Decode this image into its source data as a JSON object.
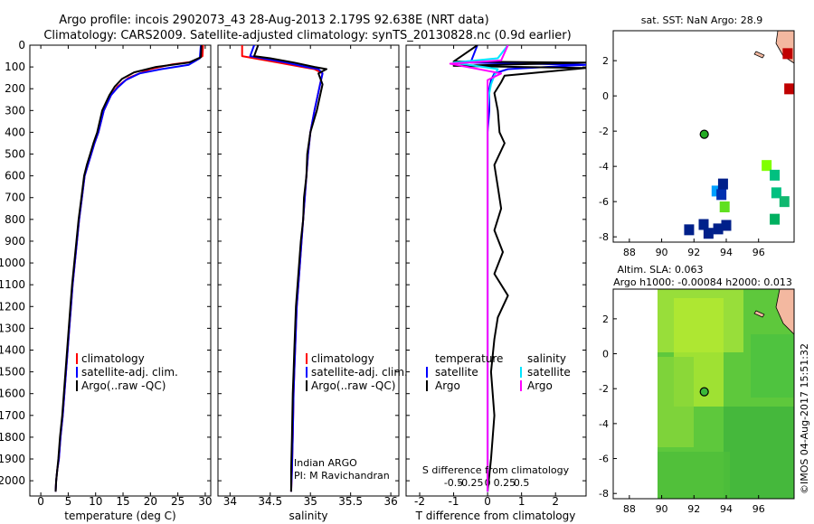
{
  "header": {
    "line1": "Argo profile: incois 2902073_43 28-Aug-2013 2.179S 92.638E (NRT data)",
    "line2": "Climatology: CARS2009. Satellite-adjusted climatology: synTS_20130828.nc (0.9d earlier)"
  },
  "colors": {
    "climatology": "#ff0000",
    "satellite": "#0000ff",
    "argo": "#000000",
    "sat_salinity": "#00e5ff",
    "argo_salinity": "#ff00ff"
  },
  "panels": {
    "temperature": {
      "xlabel": "temperature (deg C)",
      "legend": [
        "climatology",
        "satellite-adj. clim.",
        "Argo(..raw -QC)"
      ]
    },
    "salinity": {
      "xlabel": "salinity",
      "legend": [
        "climatology",
        "satellite-adj. clim.",
        "Argo(..raw -QC)"
      ],
      "credit": [
        "Indian ARGO",
        "PI: M Ravichandran"
      ]
    },
    "difference": {
      "legend_headers": [
        "temperature",
        "salinity"
      ],
      "legend_left": [
        "satellite",
        "Argo"
      ],
      "legend_right": [
        "satellite",
        "Argo"
      ],
      "top_axis_title": "S difference from climatology",
      "xlabel": "T difference from climatology"
    },
    "sst_map": {
      "title": "sat. SST: NaN Argo: 28.9"
    },
    "sla_map": {
      "title1": "Altim. SLA: 0.063",
      "title2": "Argo h1000: -0.00084 h2000: 0.013"
    },
    "footer": "©IMOS 04-Aug-2017 15:51:32"
  },
  "chart_data": [
    {
      "type": "line",
      "title": "",
      "xlabel": "temperature (deg C)",
      "ylabel": "",
      "xlim": [
        -2,
        31
      ],
      "ylim": [
        2070,
        0
      ],
      "xticks": [
        0,
        5,
        10,
        15,
        20,
        25,
        30
      ],
      "yticks": [
        0,
        100,
        200,
        300,
        400,
        500,
        600,
        700,
        800,
        900,
        1000,
        1100,
        1200,
        1300,
        1400,
        1500,
        1600,
        1700,
        1800,
        1900,
        2000
      ],
      "series": [
        {
          "name": "climatology",
          "color": "#ff0000",
          "x": [
            29.6,
            29.5,
            28,
            24,
            20,
            16,
            14,
            12.8,
            11.5,
            10.5,
            9.8,
            9.2,
            8.6,
            8.0,
            7.5,
            7.0,
            6.6,
            6.2,
            5.8,
            5.5,
            5.2,
            4.9,
            4.6,
            4.3,
            4.0,
            3.6,
            3.3,
            3.0,
            2.8,
            2.7
          ],
          "y": [
            0,
            50,
            75,
            88,
            110,
            150,
            190,
            230,
            300,
            400,
            450,
            500,
            550,
            600,
            700,
            800,
            900,
            1000,
            1100,
            1200,
            1300,
            1400,
            1500,
            1600,
            1700,
            1800,
            1900,
            1950,
            2000,
            2050
          ]
        },
        {
          "name": "satellite-adj. clim.",
          "color": "#0000ff",
          "x": [
            29.2,
            29.0,
            27,
            22,
            18,
            15.5,
            14,
            12.8,
            11.5,
            10.5,
            9.8,
            9.2,
            8.6,
            8.0,
            7.5,
            7.0,
            6.6,
            6.2,
            5.8,
            5.5,
            5.2,
            4.9,
            4.6,
            4.3,
            4.0,
            3.6,
            3.3,
            3.0,
            2.8,
            2.7
          ],
          "y": [
            0,
            60,
            90,
            110,
            130,
            160,
            195,
            230,
            300,
            400,
            450,
            500,
            550,
            600,
            700,
            800,
            900,
            1000,
            1100,
            1200,
            1300,
            1400,
            1500,
            1600,
            1700,
            1800,
            1900,
            1950,
            2000,
            2050
          ]
        },
        {
          "name": "Argo(..raw -QC)",
          "color": "#000000",
          "x": [
            29.3,
            29.2,
            27,
            21,
            17,
            14.8,
            13.5,
            12.5,
            11.2,
            10.3,
            9.6,
            9.0,
            8.4,
            7.9,
            7.4,
            6.9,
            6.5,
            6.1,
            5.7,
            5.4,
            5.1,
            4.8,
            4.5,
            4.2,
            3.9,
            3.5,
            3.2,
            3.0,
            2.8,
            2.7
          ],
          "y": [
            0,
            55,
            80,
            100,
            125,
            155,
            190,
            230,
            300,
            400,
            450,
            500,
            550,
            600,
            700,
            800,
            900,
            1000,
            1100,
            1200,
            1300,
            1400,
            1500,
            1600,
            1700,
            1800,
            1900,
            1950,
            2000,
            2050
          ]
        }
      ]
    },
    {
      "type": "line",
      "title": "",
      "xlabel": "salinity",
      "ylabel": "",
      "xlim": [
        33.85,
        36.1
      ],
      "ylim": [
        2070,
        0
      ],
      "xticks": [
        34,
        34.5,
        35,
        35.5,
        36
      ],
      "series": [
        {
          "name": "climatology",
          "color": "#ff0000",
          "x": [
            34.15,
            34.15,
            34.3,
            34.6,
            34.9,
            35.05,
            35.15,
            35.12,
            35.05,
            35.0,
            34.97,
            34.95,
            34.93,
            34.91,
            34.89,
            34.87,
            34.85,
            34.83,
            34.82,
            34.81,
            34.8,
            34.79,
            34.78,
            34.77,
            34.76
          ],
          "y": [
            0,
            50,
            60,
            80,
            100,
            110,
            130,
            180,
            300,
            400,
            500,
            600,
            700,
            800,
            900,
            1000,
            1100,
            1200,
            1300,
            1400,
            1500,
            1600,
            1800,
            1950,
            2050
          ]
        },
        {
          "name": "satellite-adj. clim.",
          "color": "#0000ff",
          "x": [
            34.3,
            34.25,
            34.4,
            34.7,
            34.95,
            35.1,
            35.15,
            35.12,
            35.05,
            35.0,
            34.97,
            34.95,
            34.93,
            34.91,
            34.89,
            34.87,
            34.85,
            34.83,
            34.82,
            34.81,
            34.8,
            34.79,
            34.78,
            34.77,
            34.76
          ],
          "y": [
            0,
            50,
            60,
            80,
            100,
            110,
            130,
            180,
            300,
            400,
            500,
            600,
            700,
            800,
            900,
            1000,
            1100,
            1200,
            1300,
            1400,
            1500,
            1600,
            1800,
            1950,
            2050
          ]
        },
        {
          "name": "Argo(..raw -QC)",
          "color": "#000000",
          "x": [
            34.35,
            34.3,
            34.5,
            34.8,
            35.05,
            35.2,
            35.1,
            35.15,
            35.08,
            35.0,
            34.96,
            34.95,
            34.92,
            34.91,
            34.88,
            34.86,
            34.84,
            34.82,
            34.81,
            34.8,
            34.79,
            34.78,
            34.77,
            34.76,
            34.76
          ],
          "y": [
            0,
            50,
            60,
            80,
            100,
            110,
            130,
            180,
            300,
            400,
            500,
            600,
            700,
            800,
            900,
            1000,
            1100,
            1200,
            1300,
            1400,
            1500,
            1600,
            1800,
            1950,
            2050
          ]
        }
      ]
    },
    {
      "type": "line",
      "title": "",
      "xlabel": "T difference from climatology",
      "x2label": "S difference from climatology",
      "xlim": [
        -2.4,
        2.9
      ],
      "ylim": [
        2070,
        0
      ],
      "xticks": [
        -2,
        -1,
        0,
        1,
        2
      ],
      "x2ticks": [
        -0.5,
        -0.25,
        0,
        0.25,
        0.5
      ],
      "series": [
        {
          "name": "temperature satellite",
          "color": "#0000ff",
          "x": [
            -0.3,
            -0.5,
            1.2,
            2.9,
            0.6,
            0.2,
            0.1,
            0.05,
            0.05,
            0.0,
            0.0,
            0.0,
            0.0,
            0.0,
            0.0,
            0.0,
            0.0,
            0.0,
            0.0,
            0.0,
            0.0,
            0.0,
            0.0,
            0.0
          ],
          "y": [
            0,
            80,
            85,
            90,
            110,
            130,
            160,
            200,
            300,
            400,
            500,
            600,
            700,
            800,
            900,
            1000,
            1100,
            1200,
            1300,
            1400,
            1500,
            1700,
            1900,
            2050
          ]
        },
        {
          "name": "temperature Argo",
          "color": "#000000",
          "x": [
            -0.3,
            -1.0,
            2.9,
            -1.0,
            2.9,
            0.5,
            0.4,
            0.2,
            0.3,
            0.35,
            0.5,
            0.2,
            0.3,
            0.4,
            0.2,
            0.45,
            0.2,
            0.6,
            0.3,
            0.2,
            0.1,
            0.2,
            0.1,
            0.0
          ],
          "y": [
            0,
            75,
            80,
            95,
            105,
            140,
            170,
            220,
            300,
            400,
            450,
            550,
            650,
            750,
            850,
            950,
            1050,
            1150,
            1250,
            1350,
            1500,
            1700,
            1900,
            2050
          ]
        },
        {
          "name": "salinity satellite",
          "color": "#00e5ff",
          "x": [
            0.6,
            0.3,
            -1.0,
            0.3,
            0.2,
            0.1,
            0.05,
            0.0,
            0.0,
            0.0,
            0.0,
            0.0,
            0.0,
            0.0,
            0.0,
            0.0,
            0.0,
            0.0,
            0.0,
            0.0,
            0.0,
            0.0
          ],
          "y": [
            0,
            60,
            80,
            110,
            140,
            180,
            220,
            300,
            400,
            500,
            600,
            700,
            800,
            900,
            1000,
            1100,
            1300,
            1500,
            1700,
            1800,
            1900,
            2050
          ]
        },
        {
          "name": "salinity Argo",
          "color": "#ff00ff",
          "x": [
            0.6,
            0.4,
            -1.1,
            0.4,
            0.0,
            0.0,
            0.0,
            0.0,
            0.0,
            0.0,
            0.0,
            0.0,
            0.0,
            0.0,
            0.0,
            0.0,
            0.0,
            0.0,
            0.0,
            0.0
          ],
          "y": [
            0,
            70,
            85,
            130,
            160,
            200,
            300,
            400,
            500,
            600,
            700,
            800,
            900,
            1000,
            1200,
            1400,
            1600,
            1800,
            1900,
            2050
          ]
        }
      ]
    },
    {
      "type": "scatter",
      "title": "sat. SST: NaN Argo: 28.9",
      "xlim": [
        87,
        98.2
      ],
      "ylim": [
        -8.3,
        3.7
      ],
      "xticks": [
        88,
        90,
        92,
        94,
        96
      ],
      "yticks": [
        -8,
        -6,
        -4,
        -2,
        0,
        2
      ],
      "argo_position": {
        "x": 92.638,
        "y": -2.179
      },
      "cells": [
        {
          "x": 91.7,
          "y": -7.6,
          "color": "#00208a"
        },
        {
          "x": 92.6,
          "y": -7.3,
          "color": "#00208a"
        },
        {
          "x": 92.9,
          "y": -7.8,
          "color": "#00208a"
        },
        {
          "x": 93.5,
          "y": -7.55,
          "color": "#00208a"
        },
        {
          "x": 94.0,
          "y": -7.35,
          "color": "#00208a"
        },
        {
          "x": 93.4,
          "y": -5.4,
          "color": "#00a0ff"
        },
        {
          "x": 93.7,
          "y": -5.6,
          "color": "#0030b0"
        },
        {
          "x": 93.8,
          "y": -5.0,
          "color": "#00208a"
        },
        {
          "x": 93.9,
          "y": -6.3,
          "color": "#60e020"
        },
        {
          "x": 96.5,
          "y": -3.95,
          "color": "#80ff00"
        },
        {
          "x": 97.0,
          "y": -4.5,
          "color": "#00c080"
        },
        {
          "x": 97.1,
          "y": -5.5,
          "color": "#00c080"
        },
        {
          "x": 97.0,
          "y": -7.0,
          "color": "#00b060"
        },
        {
          "x": 97.6,
          "y": -6.0,
          "color": "#10b870"
        },
        {
          "x": 97.8,
          "y": 2.4,
          "color": "#c00000"
        },
        {
          "x": 97.9,
          "y": 0.4,
          "color": "#c00000"
        }
      ]
    },
    {
      "type": "heatmap",
      "title": "Altim. SLA: 0.063",
      "subtitle": "Argo h1000: -0.00084 h2000: 0.013",
      "xlim": [
        87,
        98.2
      ],
      "ylim": [
        -8.3,
        3.7
      ],
      "xticks": [
        88,
        90,
        92,
        94,
        96
      ],
      "yticks": [
        -8,
        -6,
        -4,
        -2,
        0,
        2
      ],
      "data_extent_x": [
        90,
        98.2
      ],
      "argo_position": {
        "x": 92.638,
        "y": -2.179
      }
    }
  ]
}
